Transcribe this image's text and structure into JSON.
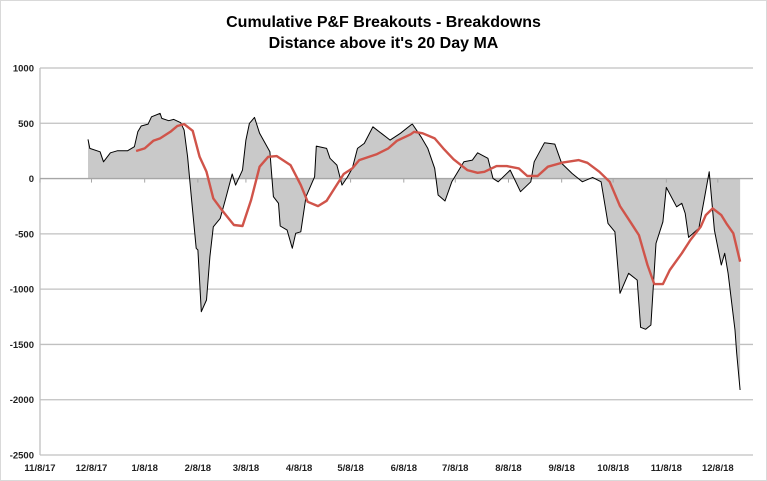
{
  "chart_data": {
    "type": "area",
    "title": "Cumulative P&F Breakouts - Breakdowns",
    "subtitle": "Distance above it's 20 Day MA",
    "xlabel": "",
    "ylabel": "",
    "x_origin_date": "11/8/17",
    "x_units": "days since 11/8/17",
    "xlim": [
      0,
      415
    ],
    "ylim": [
      -2500,
      1000
    ],
    "y_ticks": [
      1000,
      500,
      0,
      -500,
      -1000,
      -1500,
      -2000,
      -2500
    ],
    "x_ticks": [
      {
        "day": 0,
        "label": "11/8/17"
      },
      {
        "day": 30,
        "label": "12/8/17"
      },
      {
        "day": 61,
        "label": "1/8/18"
      },
      {
        "day": 92,
        "label": "2/8/18"
      },
      {
        "day": 120,
        "label": "3/8/18"
      },
      {
        "day": 151,
        "label": "4/8/18"
      },
      {
        "day": 181,
        "label": "5/8/18"
      },
      {
        "day": 212,
        "label": "6/8/18"
      },
      {
        "day": 242,
        "label": "7/8/18"
      },
      {
        "day": 273,
        "label": "8/8/18"
      },
      {
        "day": 304,
        "label": "9/8/18"
      },
      {
        "day": 334,
        "label": "10/8/18"
      },
      {
        "day": 365,
        "label": "11/8/18"
      },
      {
        "day": 395,
        "label": "12/8/18"
      }
    ],
    "grid": "horizontal",
    "legend": "none",
    "colors": {
      "area_fill": "#c9c9c9",
      "line": "#000000",
      "ma": "#d0544a",
      "grid": "#c0c0c0"
    },
    "series": [
      {
        "name": "Breakouts - Breakdowns",
        "kind": "area+line",
        "points": [
          [
            28,
            354
          ],
          [
            29,
            273
          ],
          [
            35,
            242
          ],
          [
            37,
            152
          ],
          [
            41,
            233
          ],
          [
            45,
            251
          ],
          [
            51,
            251
          ],
          [
            55,
            288
          ],
          [
            57,
            423
          ],
          [
            59,
            475
          ],
          [
            63,
            493
          ],
          [
            65,
            559
          ],
          [
            70,
            589
          ],
          [
            71,
            544
          ],
          [
            75,
            523
          ],
          [
            78,
            535
          ],
          [
            82,
            505
          ],
          [
            84,
            438
          ],
          [
            86,
            197
          ],
          [
            88,
            -134
          ],
          [
            91,
            -631
          ],
          [
            92,
            -646
          ],
          [
            94,
            -1204
          ],
          [
            97,
            -1098
          ],
          [
            99,
            -707
          ],
          [
            101,
            -436
          ],
          [
            105,
            -360
          ],
          [
            108,
            -194
          ],
          [
            112,
            41
          ],
          [
            114,
            -59
          ],
          [
            118,
            77
          ],
          [
            120,
            348
          ],
          [
            122,
            499
          ],
          [
            125,
            553
          ],
          [
            128,
            409
          ],
          [
            134,
            242
          ],
          [
            136,
            -164
          ],
          [
            139,
            -224
          ],
          [
            140,
            -429
          ],
          [
            144,
            -466
          ],
          [
            147,
            -631
          ],
          [
            149,
            -495
          ],
          [
            152,
            -481
          ],
          [
            155,
            -164
          ],
          [
            160,
            16
          ],
          [
            161,
            294
          ],
          [
            167,
            273
          ],
          [
            169,
            183
          ],
          [
            173,
            122
          ],
          [
            176,
            -59
          ],
          [
            179,
            11
          ],
          [
            182,
            92
          ],
          [
            185,
            273
          ],
          [
            189,
            318
          ],
          [
            194,
            468
          ],
          [
            202,
            372
          ],
          [
            204,
            348
          ],
          [
            210,
            409
          ],
          [
            216,
            484
          ],
          [
            217,
            493
          ],
          [
            222,
            378
          ],
          [
            226,
            273
          ],
          [
            230,
            92
          ],
          [
            232,
            -149
          ],
          [
            236,
            -203
          ],
          [
            240,
            -29
          ],
          [
            247,
            152
          ],
          [
            252,
            167
          ],
          [
            255,
            233
          ],
          [
            261,
            183
          ],
          [
            264,
            2
          ],
          [
            267,
            -29
          ],
          [
            274,
            77
          ],
          [
            280,
            -119
          ],
          [
            286,
            -29
          ],
          [
            288,
            152
          ],
          [
            294,
            324
          ],
          [
            300,
            312
          ],
          [
            304,
            137
          ],
          [
            310,
            47
          ],
          [
            316,
            -29
          ],
          [
            322,
            11
          ],
          [
            327,
            -29
          ],
          [
            331,
            -405
          ],
          [
            335,
            -481
          ],
          [
            338,
            -1038
          ],
          [
            343,
            -857
          ],
          [
            348,
            -918
          ],
          [
            350,
            -1345
          ],
          [
            353,
            -1363
          ],
          [
            356,
            -1324
          ],
          [
            359,
            -586
          ],
          [
            363,
            -391
          ],
          [
            365,
            -80
          ],
          [
            371,
            -255
          ],
          [
            374,
            -224
          ],
          [
            376,
            -315
          ],
          [
            378,
            -532
          ],
          [
            384,
            -450
          ],
          [
            387,
            -194
          ],
          [
            390,
            61
          ],
          [
            393,
            -466
          ],
          [
            397,
            -782
          ],
          [
            399,
            -676
          ],
          [
            401,
            -857
          ],
          [
            405,
            -1370
          ],
          [
            406,
            -1580
          ],
          [
            408,
            -1912
          ]
        ]
      },
      {
        "name": "20 Day MA",
        "kind": "line",
        "points": [
          [
            56,
            249
          ],
          [
            61,
            273
          ],
          [
            66,
            342
          ],
          [
            70,
            363
          ],
          [
            76,
            423
          ],
          [
            80,
            475
          ],
          [
            84,
            493
          ],
          [
            89,
            432
          ],
          [
            93,
            197
          ],
          [
            97,
            61
          ],
          [
            101,
            -179
          ],
          [
            106,
            -285
          ],
          [
            113,
            -420
          ],
          [
            118,
            -429
          ],
          [
            123,
            -194
          ],
          [
            128,
            107
          ],
          [
            133,
            197
          ],
          [
            138,
            203
          ],
          [
            146,
            122
          ],
          [
            152,
            -59
          ],
          [
            156,
            -210
          ],
          [
            162,
            -249
          ],
          [
            167,
            -201
          ],
          [
            171,
            -104
          ],
          [
            177,
            41
          ],
          [
            182,
            92
          ],
          [
            186,
            167
          ],
          [
            196,
            219
          ],
          [
            203,
            273
          ],
          [
            208,
            342
          ],
          [
            216,
            400
          ],
          [
            218,
            423
          ],
          [
            223,
            409
          ],
          [
            230,
            363
          ],
          [
            235,
            273
          ],
          [
            241,
            174
          ],
          [
            249,
            77
          ],
          [
            255,
            52
          ],
          [
            259,
            61
          ],
          [
            266,
            113
          ],
          [
            272,
            113
          ],
          [
            279,
            92
          ],
          [
            284,
            23
          ],
          [
            290,
            23
          ],
          [
            296,
            107
          ],
          [
            305,
            146
          ],
          [
            314,
            167
          ],
          [
            319,
            143
          ],
          [
            326,
            61
          ],
          [
            332,
            -29
          ],
          [
            338,
            -249
          ],
          [
            344,
            -391
          ],
          [
            349,
            -511
          ],
          [
            354,
            -782
          ],
          [
            358,
            -954
          ],
          [
            363,
            -954
          ],
          [
            367,
            -827
          ],
          [
            374,
            -676
          ],
          [
            379,
            -556
          ],
          [
            385,
            -436
          ],
          [
            388,
            -330
          ],
          [
            392,
            -270
          ],
          [
            397,
            -330
          ],
          [
            400,
            -405
          ],
          [
            404,
            -495
          ],
          [
            408,
            -752
          ]
        ]
      }
    ]
  }
}
